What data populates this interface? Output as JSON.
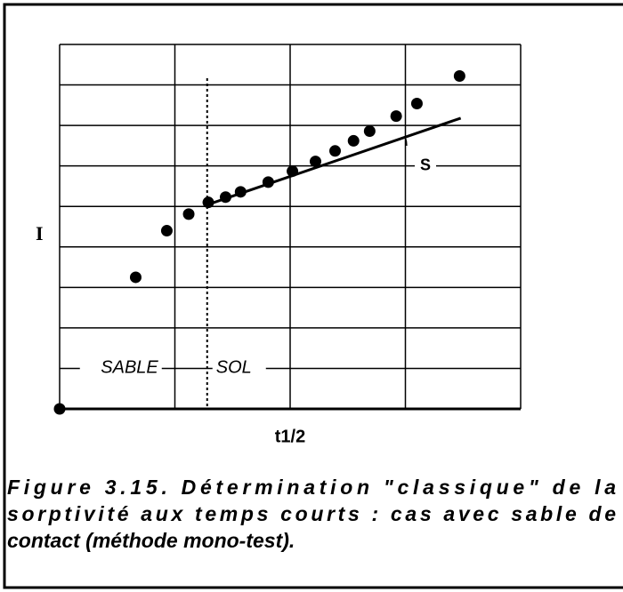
{
  "chart_data": {
    "type": "scatter",
    "y_axis_label": "I",
    "x_axis_label": "t1/2",
    "xlim": [
      0,
      4
    ],
    "ylim": [
      0,
      9
    ],
    "xticks": [
      0,
      1,
      2,
      3,
      4
    ],
    "yticks": [
      0,
      1,
      2,
      3,
      4,
      5,
      6,
      7,
      8,
      9
    ],
    "grid": true,
    "color": "#000000",
    "x": [
      0,
      0.66,
      0.93,
      1.12,
      1.29,
      1.44,
      1.57,
      1.81,
      2.02,
      2.22,
      2.39,
      2.55,
      2.69,
      2.92,
      3.1,
      3.47
    ],
    "values": [
      0,
      3.25,
      4.4,
      4.81,
      5.1,
      5.23,
      5.36,
      5.6,
      5.87,
      6.11,
      6.37,
      6.62,
      6.86,
      7.23,
      7.54,
      8.22
    ],
    "fit_line": {
      "x": [
        1.29,
        3.48
      ],
      "values": [
        5.05,
        7.18
      ],
      "label": "S"
    },
    "boundary": {
      "x": 1.28,
      "left_label": "SABLE",
      "right_label": "SOL",
      "label_y": 1
    },
    "caption_lines": [
      "Figure 3.15. Détermination \"classique\" de la",
      "sorptivité aux temps courts : cas avec sable de",
      "contact (méthode mono-test)."
    ]
  }
}
